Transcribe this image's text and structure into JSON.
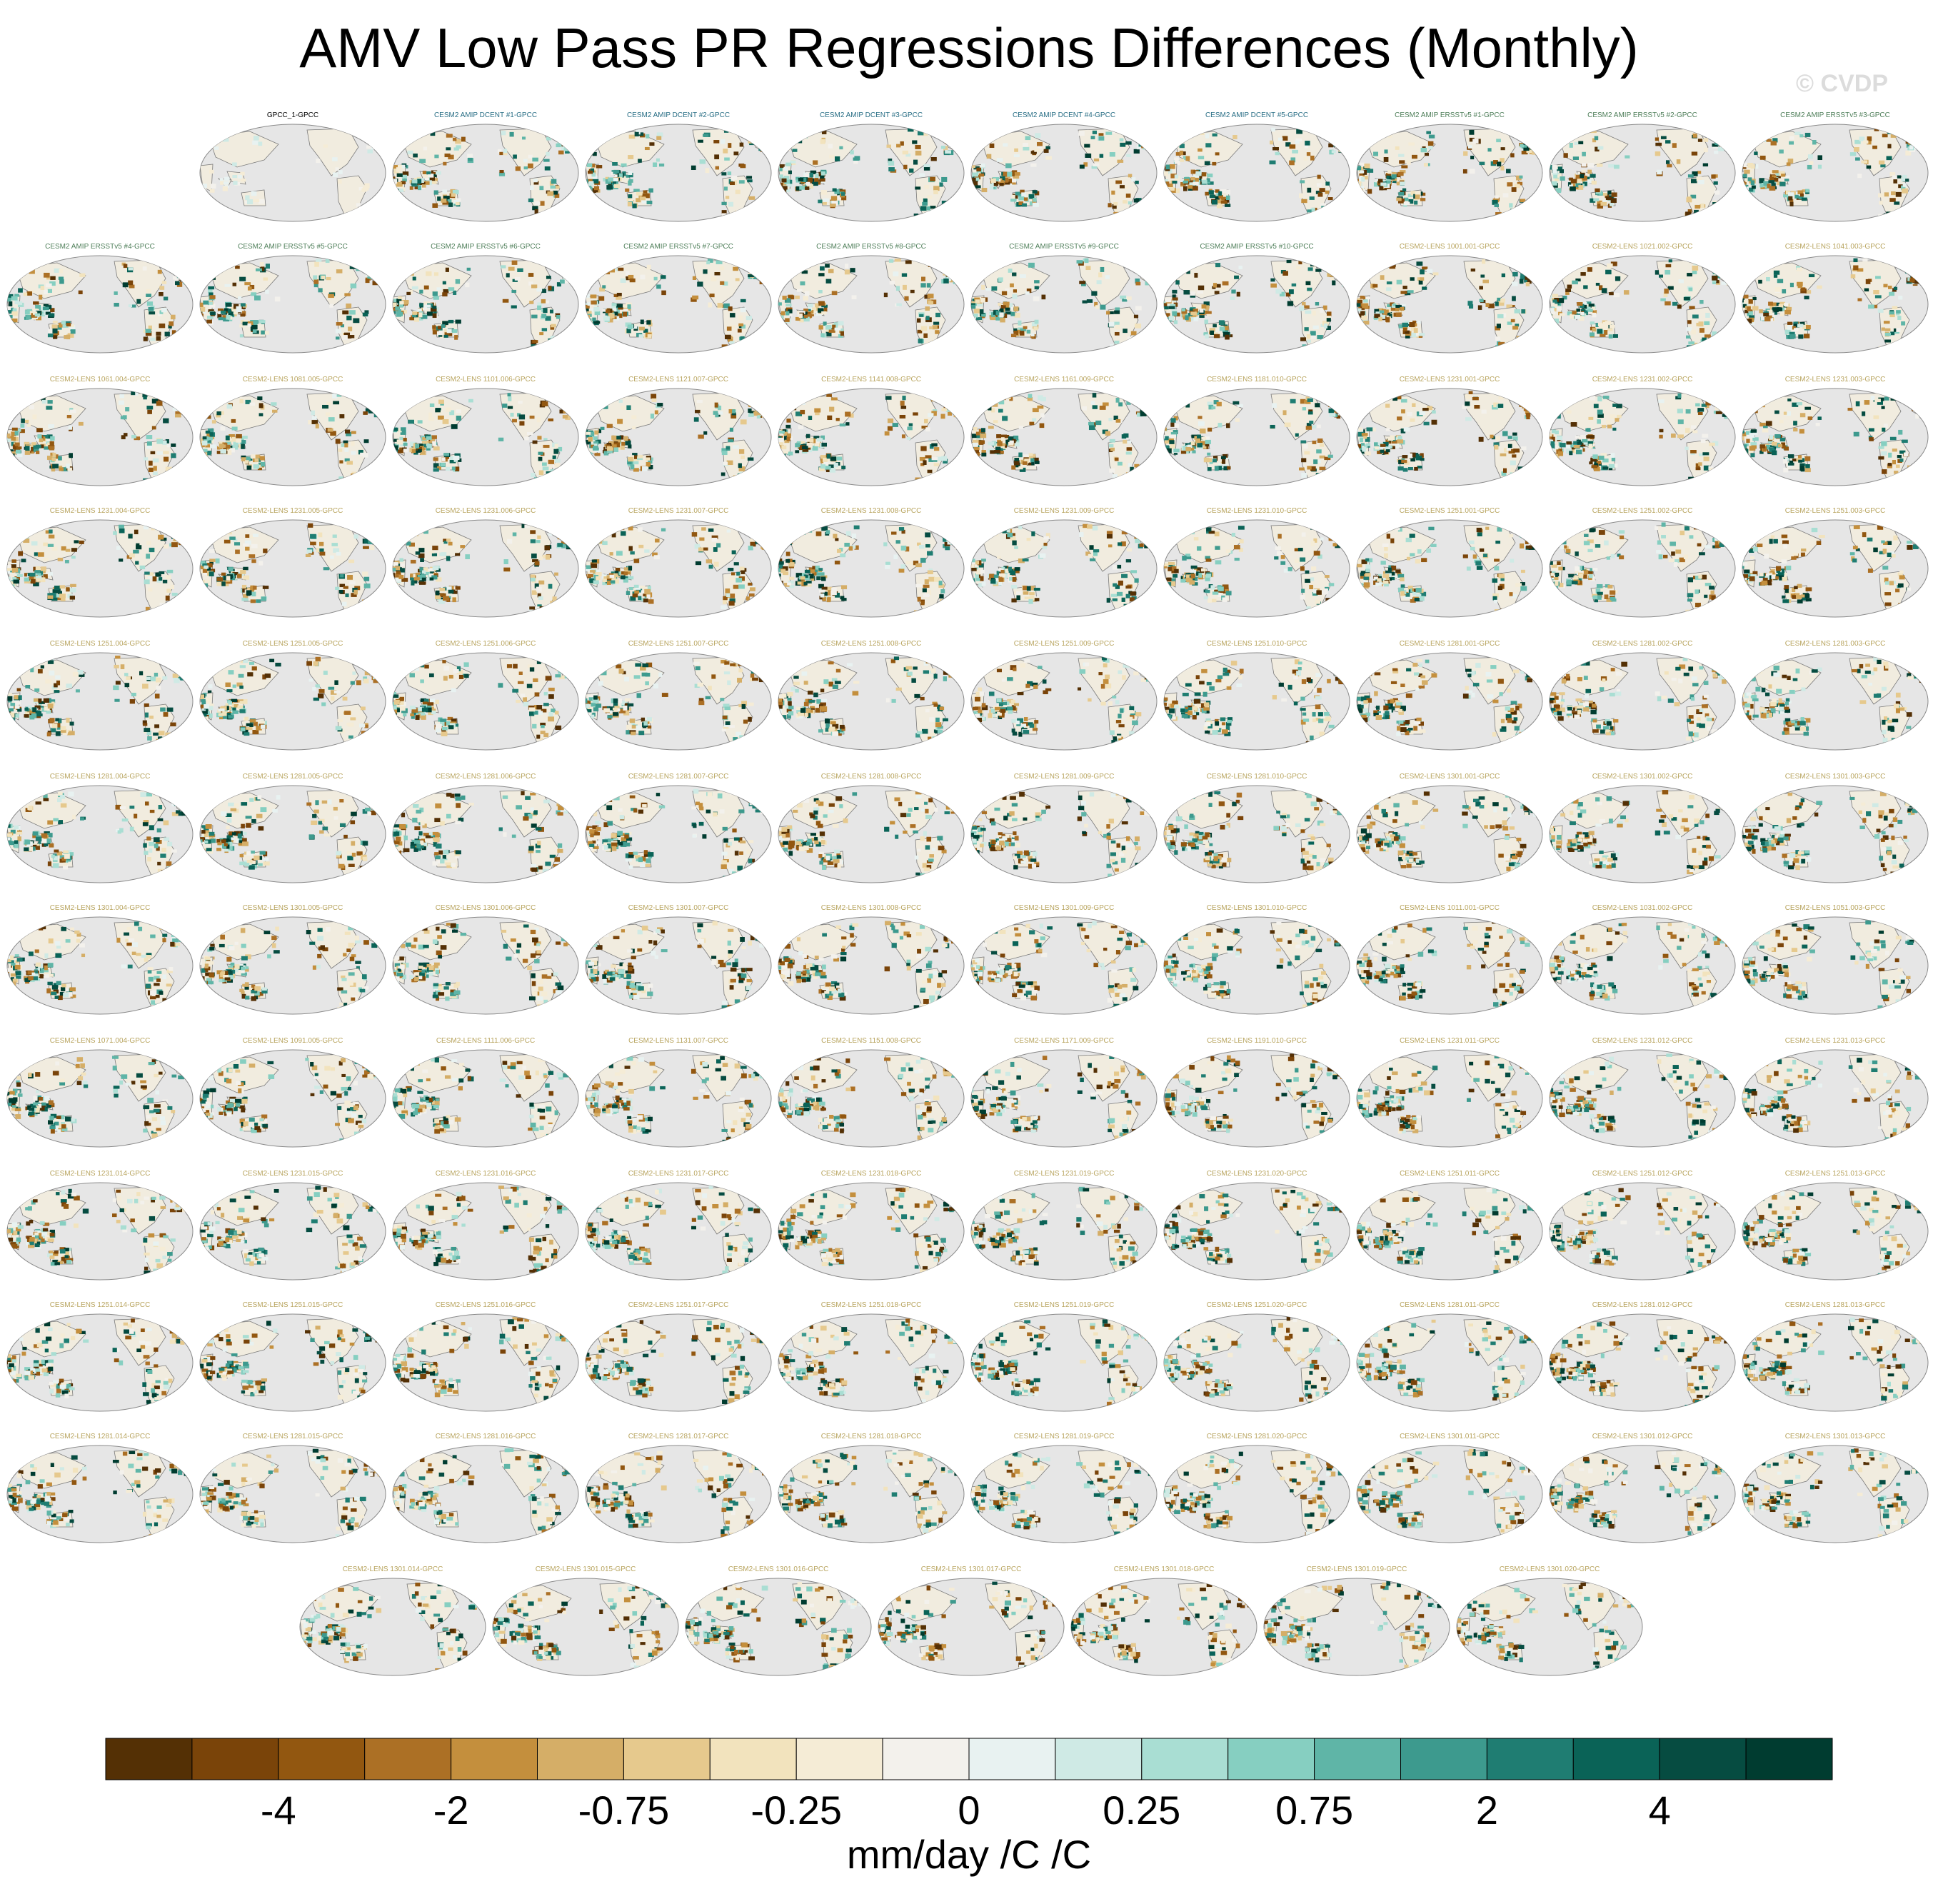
{
  "title": "AMV Low Pass PR Regressions Differences (Monthly)",
  "watermark": "© CVDP",
  "chart_data": {
    "type": "map-panels",
    "title": "AMV Low Pass PR Regressions Differences (Monthly)",
    "units": "mm/day /C /C",
    "colorbar": {
      "colors": [
        "#543005",
        "#7a4409",
        "#925710",
        "#ac7025",
        "#c48f3d",
        "#d5ae67",
        "#e6c98d",
        "#f2e3bd",
        "#f5ecd6",
        "#f3f1ec",
        "#e8f2f1",
        "#cfeae5",
        "#a9ded3",
        "#86cfc1",
        "#5fb5a7",
        "#3d9a8e",
        "#1f7d72",
        "#0a6357",
        "#064c41",
        "#003c30"
      ],
      "tick_labels": [
        "-4",
        "-2",
        "-0.75",
        "-0.25",
        "0",
        "0.25",
        "0.75",
        "2",
        "4"
      ]
    },
    "panels": [
      "GPCC_1-GPCC",
      "CESM2 AMIP DCENT #1-GPCC",
      "CESM2 AMIP DCENT #2-GPCC",
      "CESM2 AMIP DCENT #3-GPCC",
      "CESM2 AMIP DCENT #4-GPCC",
      "CESM2 AMIP DCENT #5-GPCC",
      "CESM2 AMIP ERSSTv5 #1-GPCC",
      "CESM2 AMIP ERSSTv5 #2-GPCC",
      "CESM2 AMIP ERSSTv5 #3-GPCC",
      "CESM2 AMIP ERSSTv5 #4-GPCC",
      "CESM2 AMIP ERSSTv5 #5-GPCC",
      "CESM2 AMIP ERSSTv5 #6-GPCC",
      "CESM2 AMIP ERSSTv5 #7-GPCC",
      "CESM2 AMIP ERSSTv5 #8-GPCC",
      "CESM2 AMIP ERSSTv5 #9-GPCC",
      "CESM2 AMIP ERSSTv5 #10-GPCC",
      "CESM2-LENS 1001.001-GPCC",
      "CESM2-LENS 1021.002-GPCC",
      "CESM2-LENS 1041.003-GPCC",
      "CESM2-LENS 1061.004-GPCC",
      "CESM2-LENS 1081.005-GPCC",
      "CESM2-LENS 1101.006-GPCC",
      "CESM2-LENS 1121.007-GPCC",
      "CESM2-LENS 1141.008-GPCC",
      "CESM2-LENS 1161.009-GPCC",
      "CESM2-LENS 1181.010-GPCC",
      "CESM2-LENS 1231.001-GPCC",
      "CESM2-LENS 1231.002-GPCC",
      "CESM2-LENS 1231.003-GPCC",
      "CESM2-LENS 1231.004-GPCC",
      "CESM2-LENS 1231.005-GPCC",
      "CESM2-LENS 1231.006-GPCC",
      "CESM2-LENS 1231.007-GPCC",
      "CESM2-LENS 1231.008-GPCC",
      "CESM2-LENS 1231.009-GPCC",
      "CESM2-LENS 1231.010-GPCC",
      "CESM2-LENS 1251.001-GPCC",
      "CESM2-LENS 1251.002-GPCC",
      "CESM2-LENS 1251.003-GPCC",
      "CESM2-LENS 1251.004-GPCC",
      "CESM2-LENS 1251.005-GPCC",
      "CESM2-LENS 1251.006-GPCC",
      "CESM2-LENS 1251.007-GPCC",
      "CESM2-LENS 1251.008-GPCC",
      "CESM2-LENS 1251.009-GPCC",
      "CESM2-LENS 1251.010-GPCC",
      "CESM2-LENS 1281.001-GPCC",
      "CESM2-LENS 1281.002-GPCC",
      "CESM2-LENS 1281.003-GPCC",
      "CESM2-LENS 1281.004-GPCC",
      "CESM2-LENS 1281.005-GPCC",
      "CESM2-LENS 1281.006-GPCC",
      "CESM2-LENS 1281.007-GPCC",
      "CESM2-LENS 1281.008-GPCC",
      "CESM2-LENS 1281.009-GPCC",
      "CESM2-LENS 1281.010-GPCC",
      "CESM2-LENS 1301.001-GPCC",
      "CESM2-LENS 1301.002-GPCC",
      "CESM2-LENS 1301.003-GPCC",
      "CESM2-LENS 1301.004-GPCC",
      "CESM2-LENS 1301.005-GPCC",
      "CESM2-LENS 1301.006-GPCC",
      "CESM2-LENS 1301.007-GPCC",
      "CESM2-LENS 1301.008-GPCC",
      "CESM2-LENS 1301.009-GPCC",
      "CESM2-LENS 1301.010-GPCC",
      "CESM2-LENS 1011.001-GPCC",
      "CESM2-LENS 1031.002-GPCC",
      "CESM2-LENS 1051.003-GPCC",
      "CESM2-LENS 1071.004-GPCC",
      "CESM2-LENS 1091.005-GPCC",
      "CESM2-LENS 1111.006-GPCC",
      "CESM2-LENS 1131.007-GPCC",
      "CESM2-LENS 1151.008-GPCC",
      "CESM2-LENS 1171.009-GPCC",
      "CESM2-LENS 1191.010-GPCC",
      "CESM2-LENS 1231.011-GPCC",
      "CESM2-LENS 1231.012-GPCC",
      "CESM2-LENS 1231.013-GPCC",
      "CESM2-LENS 1231.014-GPCC",
      "CESM2-LENS 1231.015-GPCC",
      "CESM2-LENS 1231.016-GPCC",
      "CESM2-LENS 1231.017-GPCC",
      "CESM2-LENS 1231.018-GPCC",
      "CESM2-LENS 1231.019-GPCC",
      "CESM2-LENS 1231.020-GPCC",
      "CESM2-LENS 1251.011-GPCC",
      "CESM2-LENS 1251.012-GPCC",
      "CESM2-LENS 1251.013-GPCC",
      "CESM2-LENS 1251.014-GPCC",
      "CESM2-LENS 1251.015-GPCC",
      "CESM2-LENS 1251.016-GPCC",
      "CESM2-LENS 1251.017-GPCC",
      "CESM2-LENS 1251.018-GPCC",
      "CESM2-LENS 1251.019-GPCC",
      "CESM2-LENS 1251.020-GPCC",
      "CESM2-LENS 1281.011-GPCC",
      "CESM2-LENS 1281.012-GPCC",
      "CESM2-LENS 1281.013-GPCC",
      "CESM2-LENS 1281.014-GPCC",
      "CESM2-LENS 1281.015-GPCC",
      "CESM2-LENS 1281.016-GPCC",
      "CESM2-LENS 1281.017-GPCC",
      "CESM2-LENS 1281.018-GPCC",
      "CESM2-LENS 1281.019-GPCC",
      "CESM2-LENS 1281.020-GPCC",
      "CESM2-LENS 1301.011-GPCC",
      "CESM2-LENS 1301.012-GPCC",
      "CESM2-LENS 1301.013-GPCC",
      "CESM2-LENS 1301.014-GPCC",
      "CESM2-LENS 1301.015-GPCC",
      "CESM2-LENS 1301.016-GPCC",
      "CESM2-LENS 1301.017-GPCC",
      "CESM2-LENS 1301.018-GPCC",
      "CESM2-LENS 1301.019-GPCC",
      "CESM2-LENS 1301.020-GPCC"
    ]
  }
}
